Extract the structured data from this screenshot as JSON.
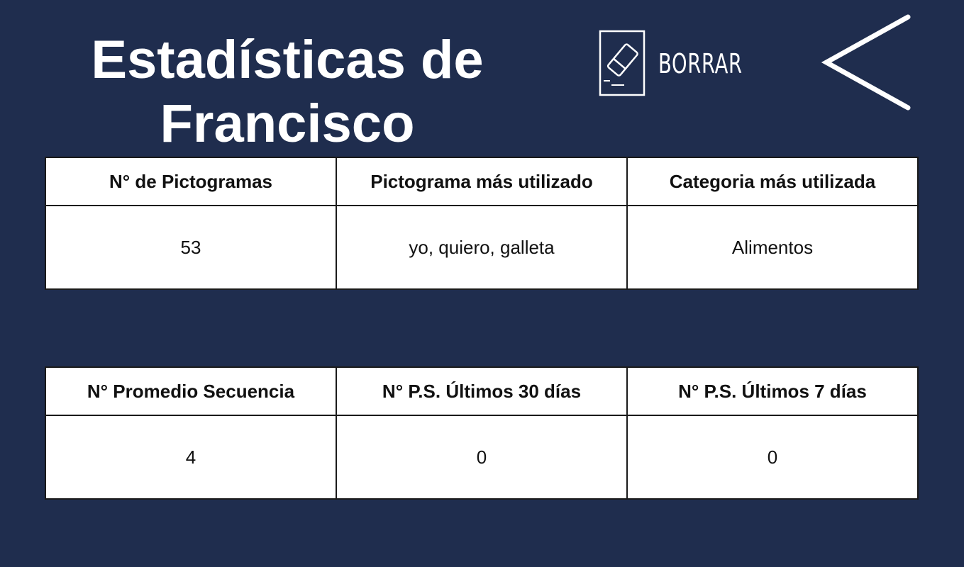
{
  "header": {
    "title_line1": "Estadísticas de",
    "title_line2": "Francisco",
    "clear_label": "BORRAR",
    "clear_icon": "eraser-icon",
    "back_icon": "chevron-left-icon"
  },
  "colors": {
    "background": "#1f2d4e",
    "table_bg": "#ffffff"
  },
  "table1": {
    "headers": [
      "N° de Pictogramas",
      "Pictograma más utilizado",
      "Categoria más utilizada"
    ],
    "values": [
      "53",
      "yo, quiero, galleta",
      "Alimentos"
    ]
  },
  "table2": {
    "headers": [
      "N° Promedio Secuencia",
      "N° P.S. Últimos 30 días",
      "N° P.S. Últimos 7 días"
    ],
    "values": [
      "4",
      "0",
      "0"
    ]
  }
}
